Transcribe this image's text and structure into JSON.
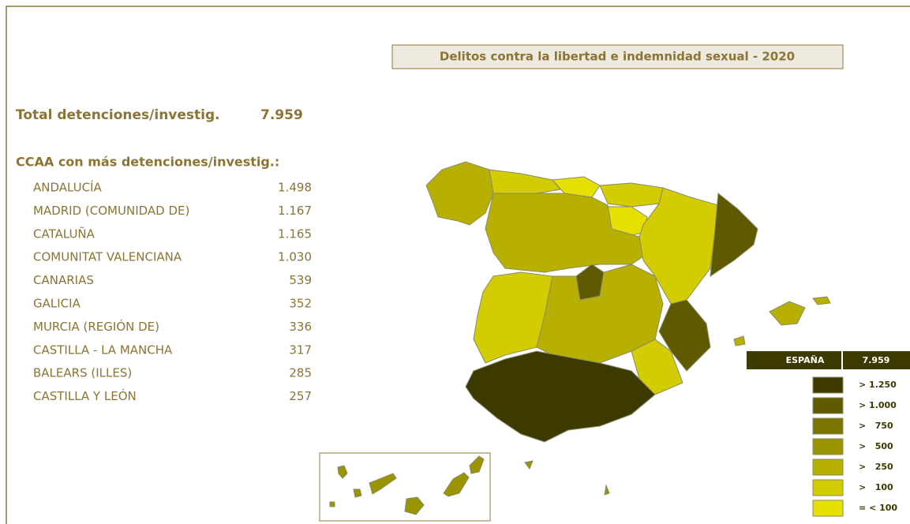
{
  "title": "Delitos contra la libertad e indemnidad sexual - 2020",
  "total": {
    "label": "Total detenciones/investig.",
    "value": "7.959"
  },
  "ranking": {
    "heading": "CCAA con más detenciones/investig.:",
    "rows": [
      [
        "ANDALUCÍA",
        "1.498"
      ],
      [
        "MADRID (COMUNIDAD DE)",
        "1.167"
      ],
      [
        "CATALUÑA",
        "1.165"
      ],
      [
        "COMUNITAT VALENCIANA",
        "1.030"
      ],
      [
        "CANARIAS",
        "539"
      ],
      [
        "GALICIA",
        "352"
      ],
      [
        "MURCIA (REGIÓN DE)",
        "336"
      ],
      [
        "CASTILLA - LA MANCHA",
        "317"
      ],
      [
        "BALEARS (ILLES)",
        "285"
      ],
      [
        "CASTILLA Y LEÓN",
        "257"
      ]
    ]
  },
  "map_total": {
    "label": "ESPAÑA",
    "value": "7.959"
  },
  "legend": [
    {
      "label": "> 1.250",
      "color": "#3d3a00"
    },
    {
      "label": "> 1.000",
      "color": "#5f5a00"
    },
    {
      "label": ">   750",
      "color": "#7b7400"
    },
    {
      "label": ">   500",
      "color": "#9a9400"
    },
    {
      "label": ">   250",
      "color": "#b8b000"
    },
    {
      "label": ">   100",
      "color": "#d2cc00"
    },
    {
      "label": "= < 100",
      "color": "#e6e000"
    }
  ]
}
